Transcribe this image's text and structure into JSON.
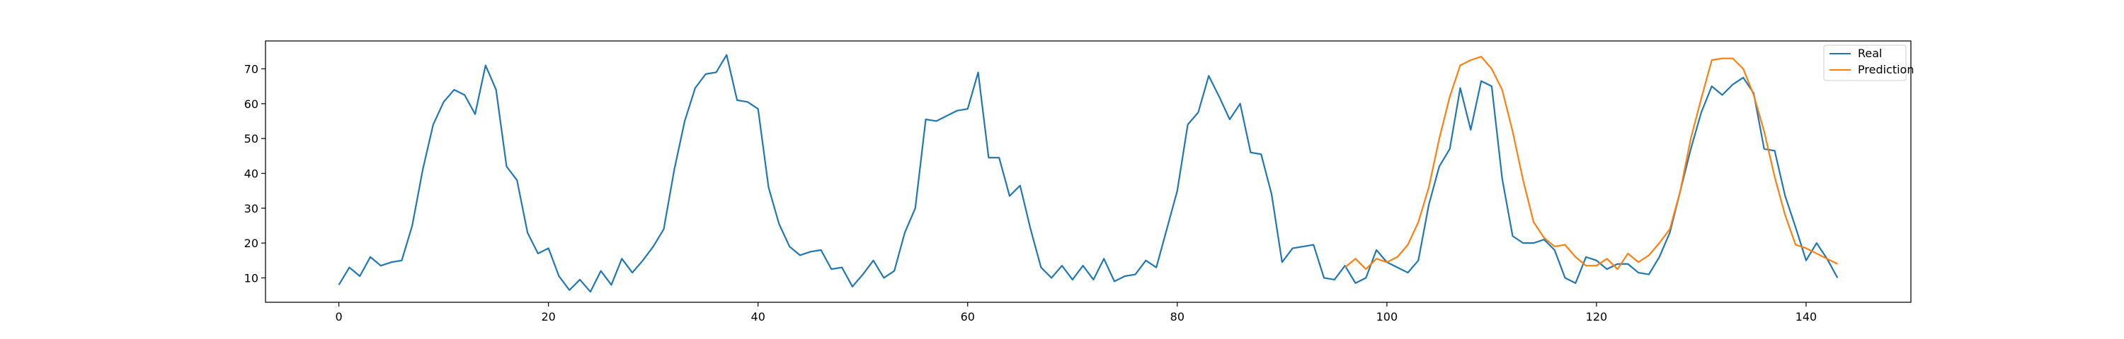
{
  "chart_data": {
    "type": "line",
    "title": "",
    "xlabel": "",
    "ylabel": "",
    "xlim": [
      -7,
      150
    ],
    "ylim": [
      3,
      78
    ],
    "x_ticks": [
      0,
      20,
      40,
      60,
      80,
      100,
      120,
      140
    ],
    "y_ticks": [
      10,
      20,
      30,
      40,
      50,
      60,
      70
    ],
    "grid": false,
    "legend": {
      "position": "top-right",
      "entries": [
        "Real",
        "Prediction"
      ]
    },
    "series": [
      {
        "name": "Real",
        "color": "#1f77b4",
        "x_start": 0,
        "values": [
          8,
          13,
          10.5,
          16,
          13.5,
          14.5,
          15,
          25,
          41,
          54,
          60.5,
          64,
          62.5,
          57,
          71,
          64,
          42,
          38,
          23,
          17,
          18.5,
          10.5,
          6.5,
          9.5,
          6,
          12,
          8,
          15.5,
          11.5,
          15,
          19,
          24,
          41,
          55,
          64.5,
          68.5,
          69,
          74,
          61,
          60.5,
          58.5,
          36,
          25.5,
          19,
          16.5,
          17.5,
          18,
          12.5,
          13,
          7.5,
          11,
          15,
          10,
          12,
          23,
          30,
          55.5,
          55,
          56.5,
          58,
          58.5,
          69,
          44.5,
          44.5,
          33.5,
          36.5,
          24,
          13,
          10,
          13.5,
          9.5,
          13.5,
          9.5,
          15.5,
          9,
          10.5,
          11,
          15,
          13,
          24,
          35,
          54,
          57.5,
          68,
          62,
          55.5,
          60,
          46,
          45.5,
          34,
          14.5,
          18.5,
          19,
          19.5,
          10,
          9.5,
          13.5,
          8.5,
          10,
          18,
          14.5,
          13,
          11.5,
          15,
          31,
          42,
          47,
          64.5,
          52.5,
          66.5,
          65,
          38.5,
          22,
          20,
          20,
          21,
          18,
          10,
          8.5,
          16,
          15,
          12.5,
          14,
          14,
          11.5,
          11,
          16,
          23,
          35,
          47,
          57.5,
          65,
          62.5,
          65.5,
          67.5,
          63,
          47,
          46.5,
          33.5,
          24.5,
          15,
          20,
          15.5,
          10
        ]
      },
      {
        "name": "Prediction",
        "color": "#ff7f0e",
        "x_start": 96,
        "values": [
          13,
          15.5,
          12.5,
          15.5,
          14.5,
          16,
          19.5,
          26,
          36,
          50,
          62,
          71,
          72.5,
          73.5,
          70,
          64,
          52,
          38,
          26,
          21.5,
          19,
          19.5,
          16,
          13.5,
          13.5,
          15.5,
          12.5,
          17,
          14.5,
          16.5,
          20,
          24,
          35,
          50,
          61.5,
          72.5,
          73,
          73,
          70,
          62.5,
          52,
          39,
          28,
          19.5,
          18.5,
          17,
          15.5,
          14
        ]
      }
    ]
  }
}
